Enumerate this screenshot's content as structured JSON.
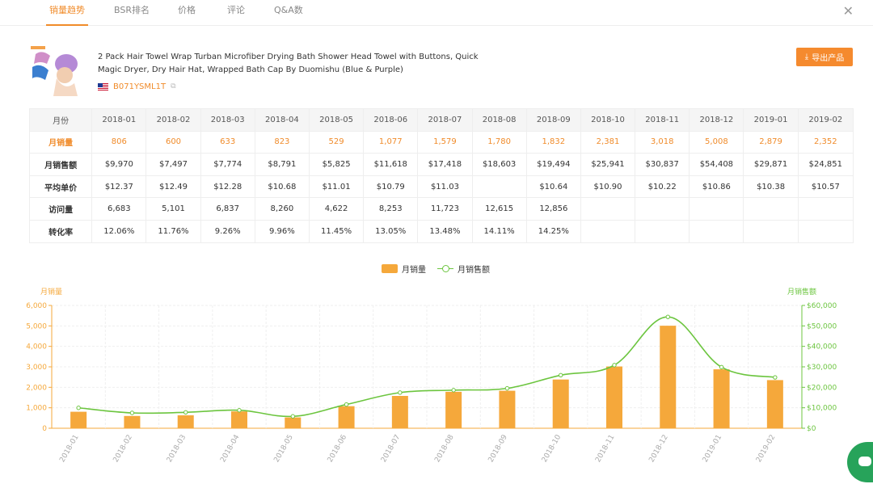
{
  "tabs": [
    {
      "label": "销量趋势",
      "active": true
    },
    {
      "label": "BSR排名",
      "active": false
    },
    {
      "label": "价格",
      "active": false
    },
    {
      "label": "评论",
      "active": false
    },
    {
      "label": "Q&A数",
      "active": false
    }
  ],
  "product": {
    "title": "2 Pack Hair Towel Wrap Turban Microfiber Drying Bath Shower Head Towel with Buttons, Quick Magic Dryer, Dry Hair Hat, Wrapped Bath Cap By Duomishu (Blue & Purple)",
    "asin": "B071YSML1T",
    "marketplace_flag": "us-flag-icon"
  },
  "export_label": "导出产品",
  "table": {
    "row_headers": [
      "月份",
      "月销量",
      "月销售额",
      "平均单价",
      "访问量",
      "转化率"
    ],
    "months": [
      "2018-01",
      "2018-02",
      "2018-03",
      "2018-04",
      "2018-05",
      "2018-06",
      "2018-07",
      "2018-08",
      "2018-09",
      "2018-10",
      "2018-11",
      "2018-12",
      "2019-01",
      "2019-02"
    ],
    "sales": [
      "806",
      "600",
      "633",
      "823",
      "529",
      "1,077",
      "1,579",
      "1,780",
      "1,832",
      "2,381",
      "3,018",
      "5,008",
      "2,879",
      "2,352"
    ],
    "revenue": [
      "$9,970",
      "$7,497",
      "$7,774",
      "$8,791",
      "$5,825",
      "$11,618",
      "$17,418",
      "$18,603",
      "$19,494",
      "$25,941",
      "$30,837",
      "$54,408",
      "$29,871",
      "$24,851"
    ],
    "avg_price": [
      "$12.37",
      "$12.49",
      "$12.28",
      "$10.68",
      "$11.01",
      "$10.79",
      "$11.03",
      "",
      "$10.64",
      "$10.90",
      "$10.22",
      "$10.86",
      "$10.38",
      "$10.57"
    ],
    "visits": [
      "6,683",
      "5,101",
      "6,837",
      "8,260",
      "4,622",
      "8,253",
      "11,723",
      "12,615",
      "12,856",
      "",
      "",
      "",
      "",
      ""
    ],
    "conversion": [
      "12.06%",
      "11.76%",
      "9.26%",
      "9.96%",
      "11.45%",
      "13.05%",
      "13.48%",
      "14.11%",
      "14.25%",
      "",
      "",
      "",
      "",
      ""
    ]
  },
  "chart_data": {
    "type": "bar",
    "categories": [
      "2018-01",
      "2018-02",
      "2018-03",
      "2018-04",
      "2018-05",
      "2018-06",
      "2018-07",
      "2018-08",
      "2018-09",
      "2018-10",
      "2018-11",
      "2018-12",
      "2019-01",
      "2019-02"
    ],
    "series": [
      {
        "name": "月销量",
        "type": "bar",
        "axis": "left",
        "color": "#f5a83b",
        "values": [
          806,
          600,
          633,
          823,
          529,
          1077,
          1579,
          1780,
          1832,
          2381,
          3018,
          5008,
          2879,
          2352
        ]
      },
      {
        "name": "月销售额",
        "type": "line",
        "axis": "right",
        "color": "#6cc53f",
        "values": [
          9970,
          7497,
          7774,
          8791,
          5825,
          11618,
          17418,
          18603,
          19494,
          25941,
          30837,
          54408,
          29871,
          24851
        ]
      }
    ],
    "ylabel_left": "月销量",
    "ylabel_right": "月销售额",
    "ylim_left": [
      0,
      6000
    ],
    "ylim_right": [
      0,
      60000
    ],
    "yticks_left": [
      "0",
      "1,000",
      "2,000",
      "3,000",
      "4,000",
      "5,000",
      "6,000"
    ],
    "yticks_right": [
      "$0",
      "$10,000",
      "$20,000",
      "$30,000",
      "$40,000",
      "$50,000",
      "$60,000"
    ],
    "legend_position": "top-center",
    "grid": true
  }
}
